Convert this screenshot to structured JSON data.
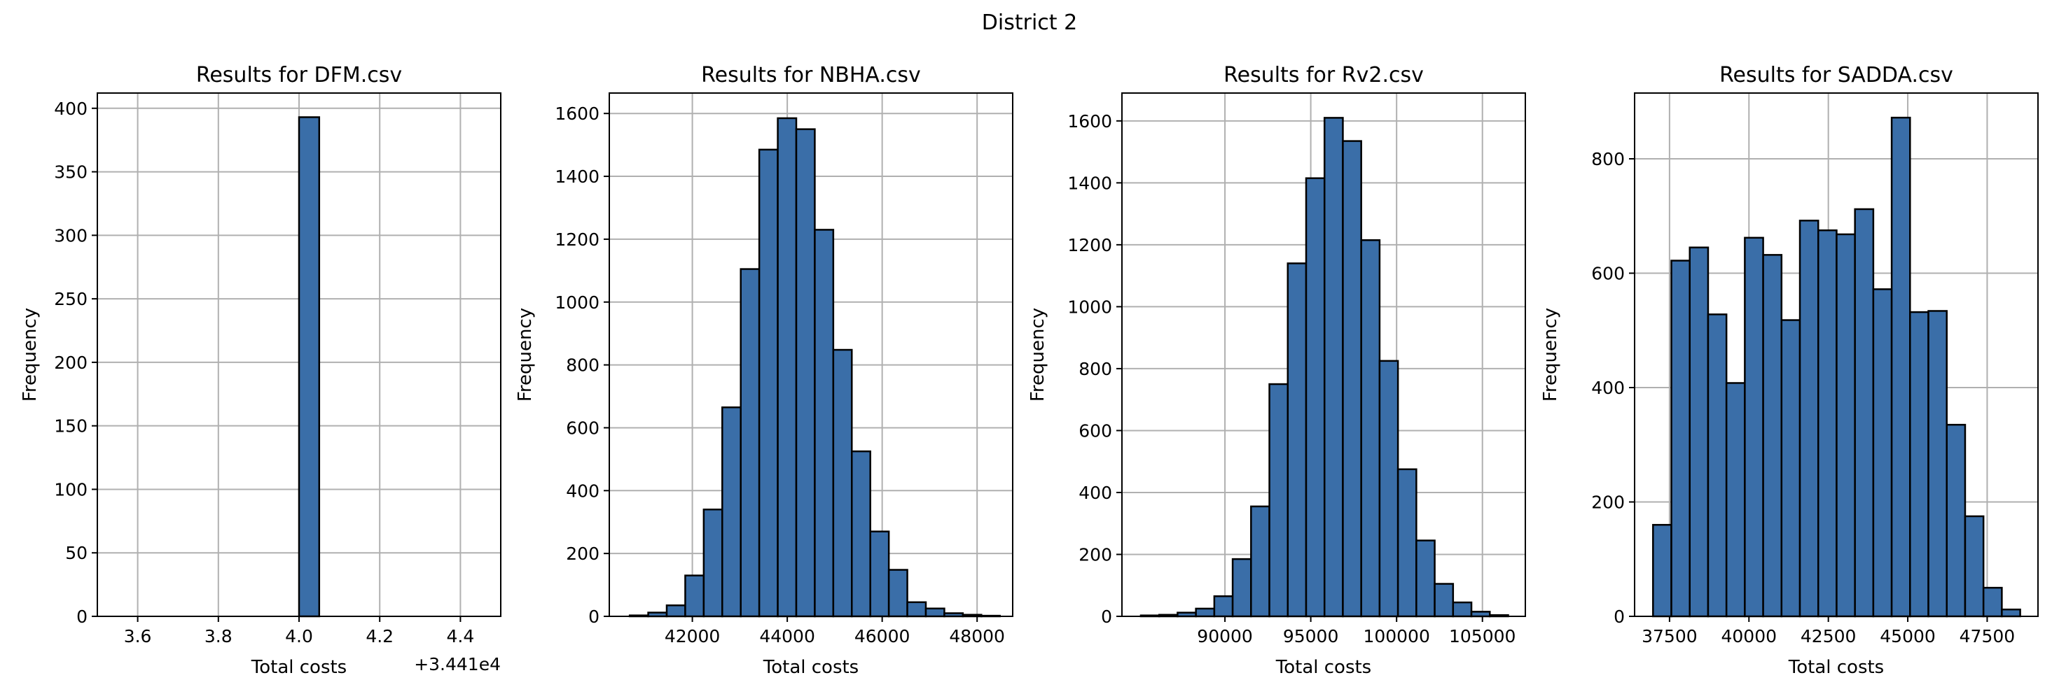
{
  "figure": {
    "suptitle": "District 2"
  },
  "colors": {
    "bar": "#3a6ea8",
    "edge": "#000000",
    "grid": "#b0b0b0"
  },
  "chart_data": [
    {
      "type": "bar",
      "title": "Results for DFM.csv",
      "xlabel": "Total costs",
      "ylabel": "Frequency",
      "offset_text": "+3.441e4",
      "xlim": [
        3.5,
        4.5
      ],
      "ylim": [
        0,
        412
      ],
      "xticks": [
        3.6,
        3.8,
        4.0,
        4.2,
        4.4
      ],
      "xtick_labels": [
        "3.6",
        "3.8",
        "4.0",
        "4.2",
        "4.4"
      ],
      "yticks": [
        0,
        50,
        100,
        150,
        200,
        250,
        300,
        350,
        400
      ],
      "ytick_labels": [
        "0",
        "50",
        "100",
        "150",
        "200",
        "250",
        "300",
        "350",
        "400"
      ],
      "bins": [
        [
          4.0,
          4.05,
          393
        ]
      ]
    },
    {
      "type": "bar",
      "title": "Results for NBHA.csv",
      "xlabel": "Total costs",
      "ylabel": "Frequency",
      "xlim": [
        40250,
        48750
      ],
      "ylim": [
        0,
        1665
      ],
      "xticks": [
        42000,
        44000,
        46000,
        48000
      ],
      "xtick_labels": [
        "42000",
        "44000",
        "46000",
        "48000"
      ],
      "yticks": [
        0,
        200,
        400,
        600,
        800,
        1000,
        1200,
        1400,
        1600
      ],
      "ytick_labels": [
        "0",
        "200",
        "400",
        "600",
        "800",
        "1000",
        "1200",
        "1400",
        "1600"
      ],
      "bin_start": 40680,
      "bin_width": 390,
      "values": [
        3,
        12,
        35,
        130,
        340,
        665,
        1105,
        1485,
        1585,
        1550,
        1230,
        848,
        525,
        270,
        148,
        45,
        25,
        10,
        5,
        2
      ]
    },
    {
      "type": "bar",
      "title": "Results for Rv2.csv",
      "xlabel": "Total costs",
      "ylabel": "Frequency",
      "xlim": [
        84000,
        107500
      ],
      "ylim": [
        0,
        1690
      ],
      "xticks": [
        90000,
        95000,
        100000,
        105000
      ],
      "xtick_labels": [
        "90000",
        "95000",
        "100000",
        "105000"
      ],
      "yticks": [
        0,
        200,
        400,
        600,
        800,
        1000,
        1200,
        1400,
        1600
      ],
      "ytick_labels": [
        "0",
        "200",
        "400",
        "600",
        "800",
        "1000",
        "1200",
        "1400",
        "1600"
      ],
      "bin_start": 85100,
      "bin_width": 1070,
      "values": [
        3,
        5,
        12,
        25,
        65,
        185,
        355,
        750,
        1140,
        1415,
        1610,
        1535,
        1215,
        825,
        475,
        245,
        105,
        45,
        15,
        4
      ]
    },
    {
      "type": "bar",
      "title": "Results for SADDA.csv",
      "xlabel": "Total costs",
      "ylabel": "Frequency",
      "xlim": [
        36400,
        49100
      ],
      "ylim": [
        0,
        915
      ],
      "xticks": [
        37500,
        40000,
        42500,
        45000,
        47500
      ],
      "xtick_labels": [
        "37500",
        "40000",
        "42500",
        "45000",
        "47500"
      ],
      "yticks": [
        0,
        200,
        400,
        600,
        800
      ],
      "ytick_labels": [
        "0",
        "200",
        "400",
        "600",
        "800"
      ],
      "bin_start": 36980,
      "bin_width": 578,
      "values": [
        160,
        622,
        645,
        528,
        408,
        662,
        632,
        518,
        692,
        675,
        668,
        712,
        572,
        872,
        532,
        534,
        335,
        175,
        50,
        12
      ]
    }
  ]
}
